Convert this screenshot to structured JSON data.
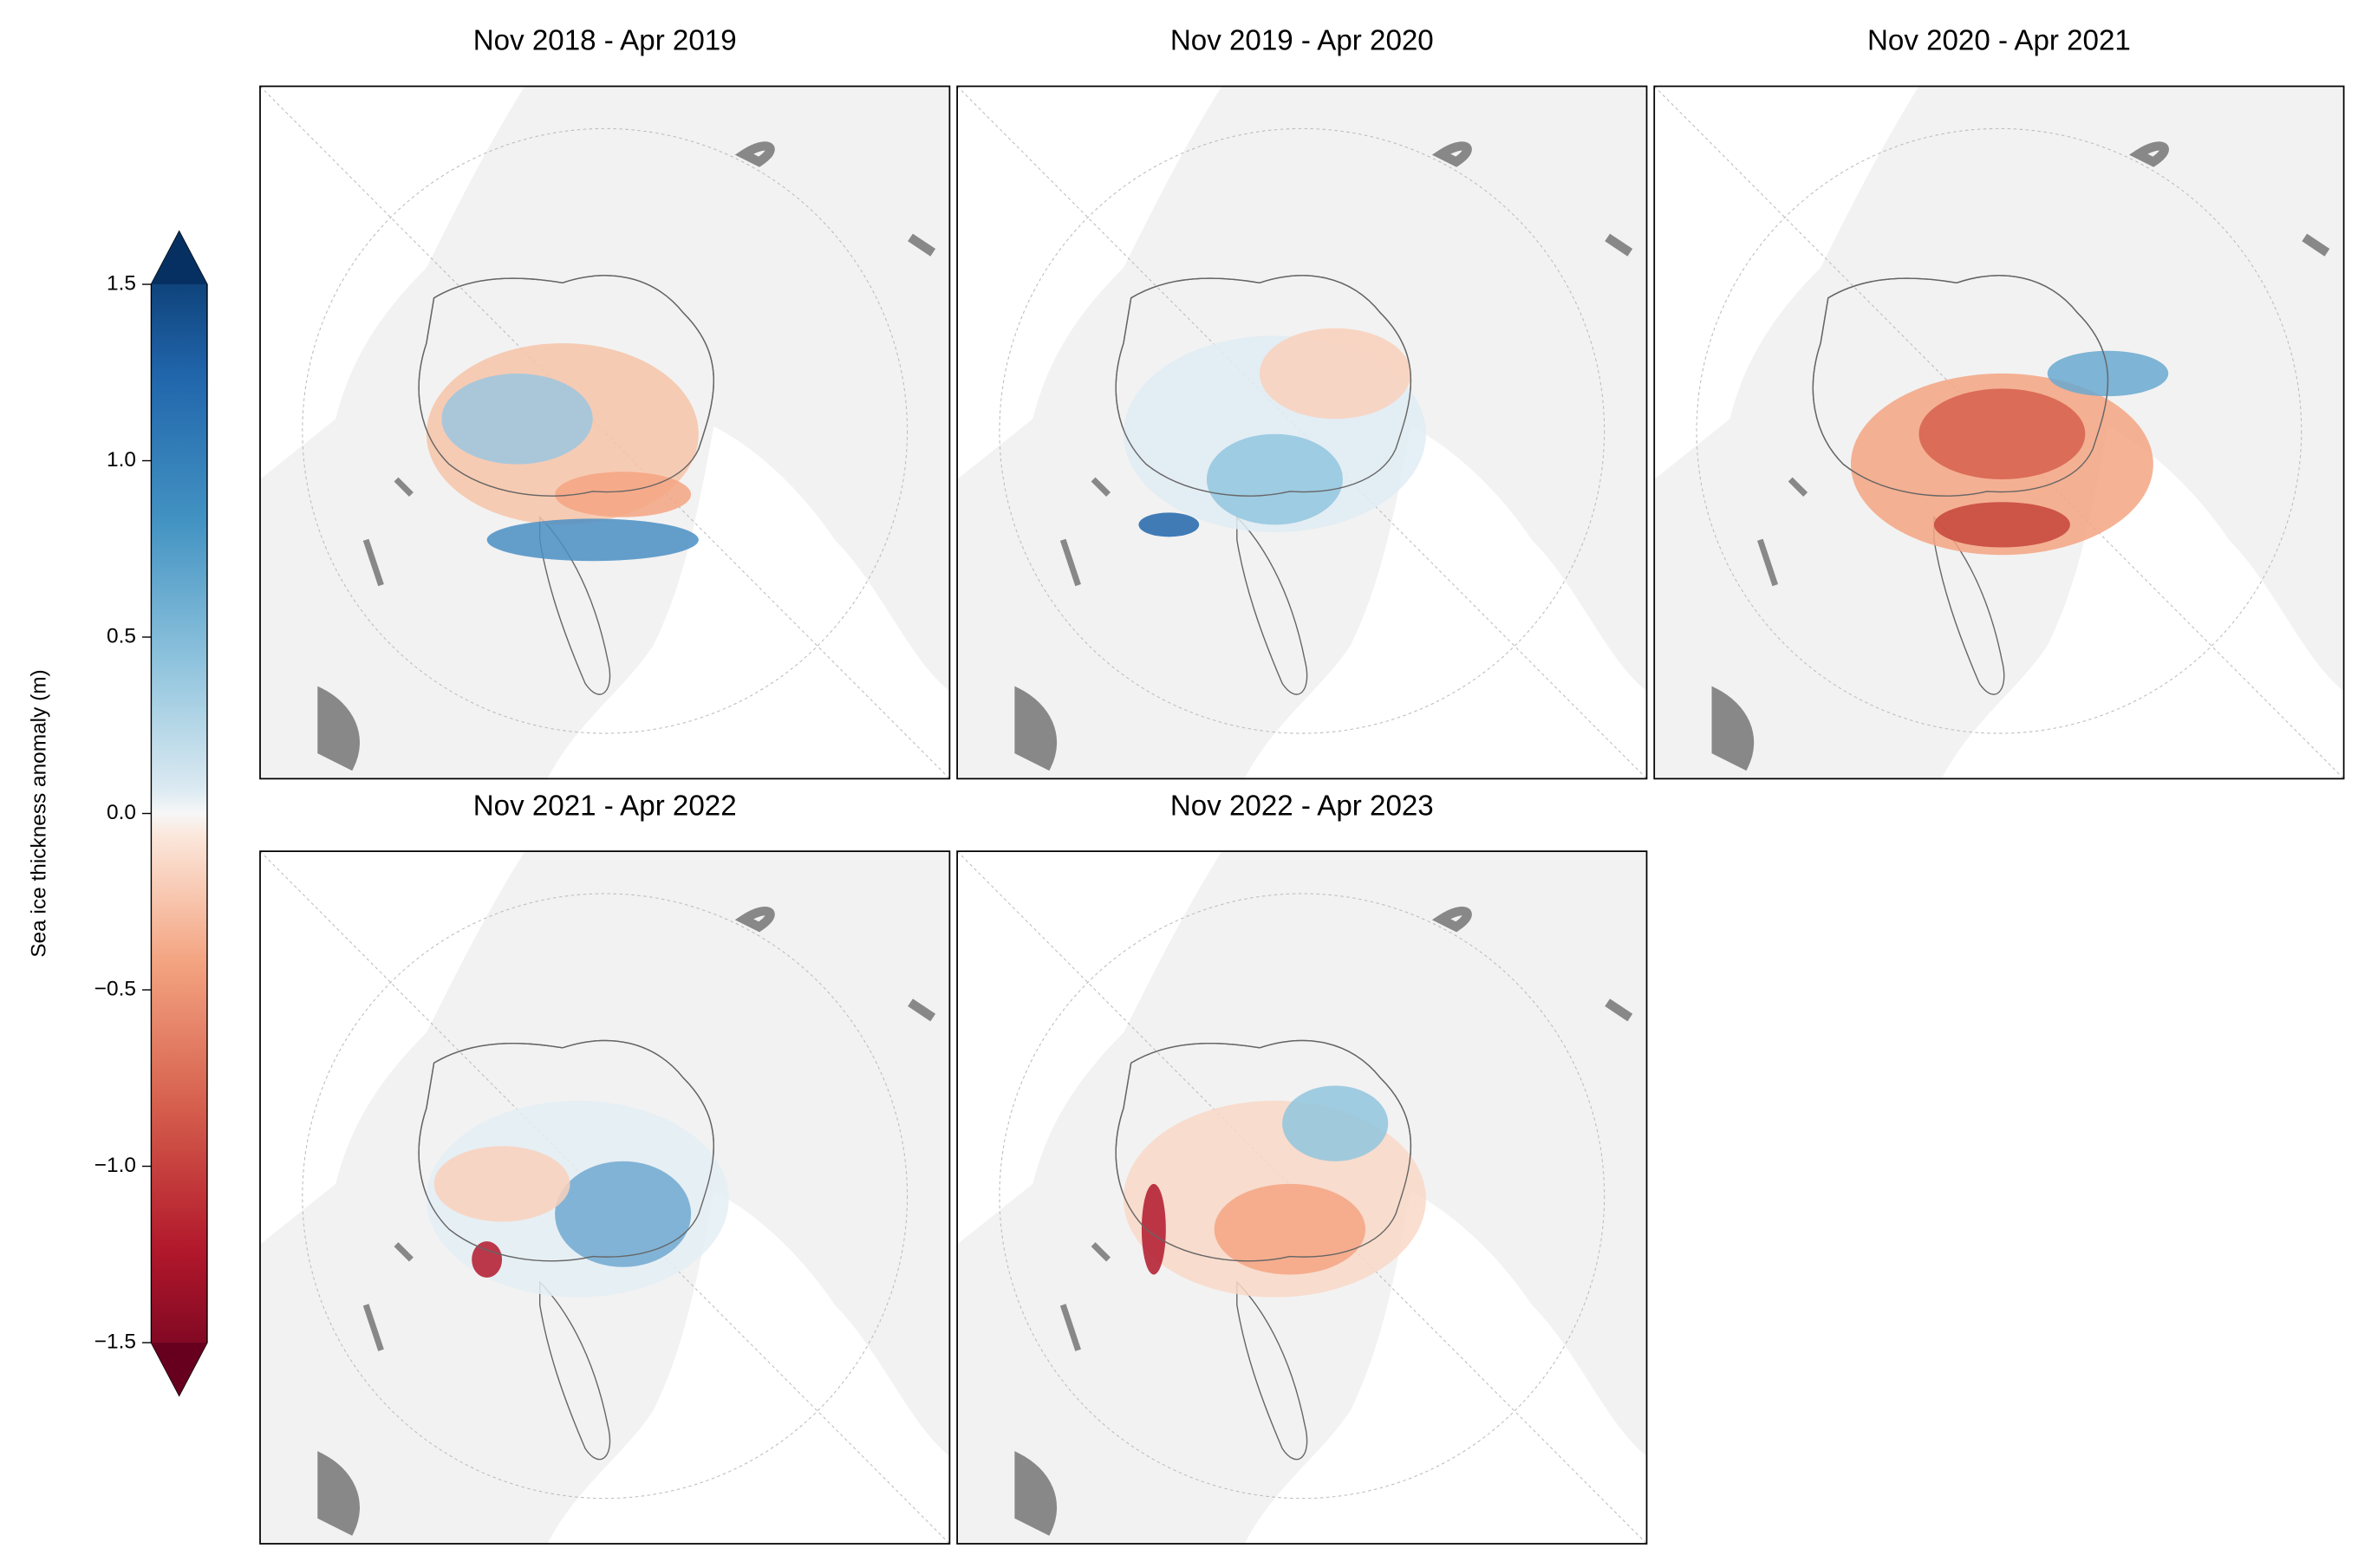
{
  "colorbar": {
    "label": "Sea ice thickness anomaly (m)",
    "lim": [
      -1.5,
      1.5
    ],
    "ticks": [
      {
        "value": 1.5,
        "label": "1.5"
      },
      {
        "value": 1.0,
        "label": "1.0"
      },
      {
        "value": 0.5,
        "label": "0.5"
      },
      {
        "value": 0.0,
        "label": "0.0"
      },
      {
        "value": -0.5,
        "label": "−0.5"
      },
      {
        "value": -1.0,
        "label": "−1.0"
      },
      {
        "value": -1.5,
        "label": "−1.5"
      }
    ]
  },
  "panels": [
    {
      "title": "Nov 2018 - Apr 2019"
    },
    {
      "title": "Nov 2019 - Apr 2020"
    },
    {
      "title": "Nov 2020 - Apr 2021"
    },
    {
      "title": "Nov 2021 - Apr 2022"
    },
    {
      "title": "Nov 2022 - Apr 2023"
    }
  ]
}
